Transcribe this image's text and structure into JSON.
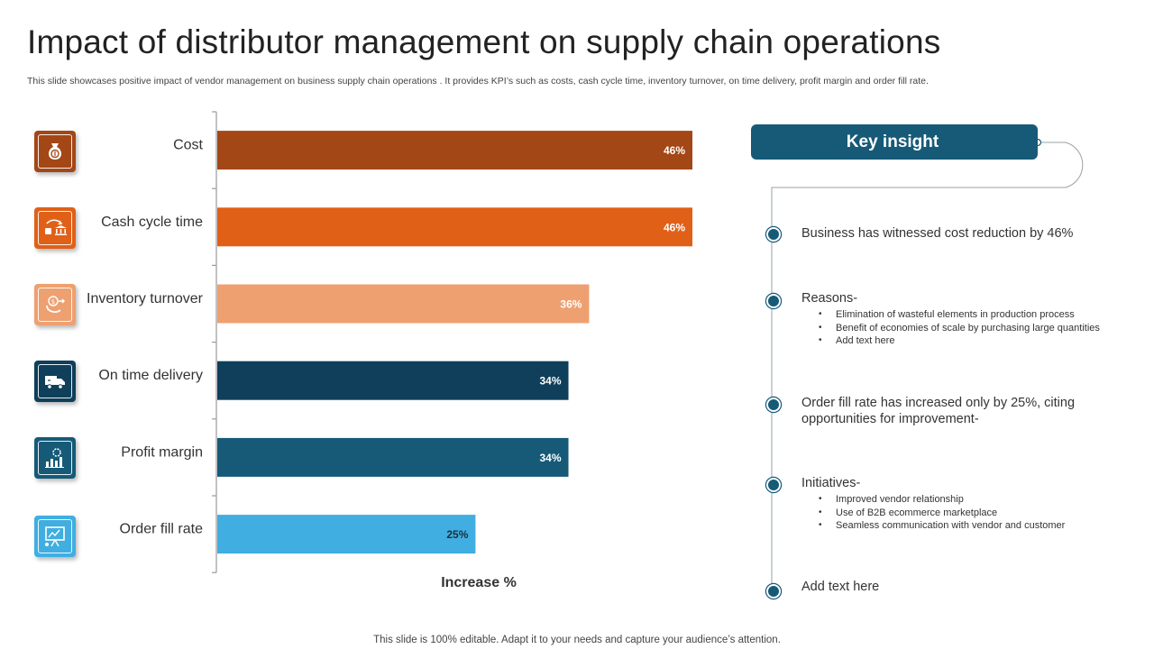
{
  "title": "Impact of distributor management on supply chain operations",
  "subtitle": "This slide showcases positive impact of vendor management on business supply chain operations . It provides KPI’s such as costs, cash cycle time, inventory turnover,  on time delivery,  profit margin and order fill rate.",
  "footer": "This slide is 100% editable. Adapt it to your needs and capture your audience’s attention.",
  "chart_data": {
    "type": "bar",
    "orientation": "horizontal",
    "categories": [
      "Cost",
      "Cash cycle time",
      "Inventory turnover",
      "On time delivery",
      "Profit margin",
      "Order fill rate"
    ],
    "values": [
      46,
      46,
      36,
      34,
      34,
      25
    ],
    "data_labels": [
      "46%",
      "46%",
      "36%",
      "34%",
      "34%",
      "25%"
    ],
    "colors": [
      "#a34716",
      "#e06018",
      "#eea070",
      "#0f3f5a",
      "#165a78",
      "#40aee0"
    ],
    "label_colors": [
      "#ffffff",
      "#ffffff",
      "#ffffff",
      "#ffffff",
      "#ffffff",
      "#1a3040"
    ],
    "xlabel": "Increase %",
    "ylabel": "",
    "xlim": [
      0,
      46
    ],
    "grid": false,
    "legend": "none"
  },
  "icons": [
    {
      "name": "money-bag-icon",
      "color": "#a34716"
    },
    {
      "name": "cash-exchange-icon",
      "color": "#e06018"
    },
    {
      "name": "inventory-cycle-icon",
      "color": "#eea070"
    },
    {
      "name": "delivery-truck-icon",
      "color": "#0f3f5a"
    },
    {
      "name": "profit-chart-icon",
      "color": "#165a78"
    },
    {
      "name": "presentation-board-icon",
      "color": "#40aee0"
    }
  ],
  "insight": {
    "header": "Key insight",
    "accent": "#165a78",
    "items": [
      {
        "text": "Business has witnessed cost reduction by 46%"
      },
      {
        "text": "Reasons-",
        "bullets": [
          "Elimination of wasteful elements in production process",
          "Benefit of economies of scale by purchasing large quantities",
          "Add text here"
        ]
      },
      {
        "text": "Order fill rate has increased only by 25%, citing opportunities for improvement-"
      },
      {
        "text": "Initiatives-",
        "bullets": [
          "Improved vendor relationship",
          "Use of B2B ecommerce marketplace",
          "Seamless communication with vendor and customer"
        ]
      },
      {
        "text": "Add text here"
      }
    ]
  }
}
